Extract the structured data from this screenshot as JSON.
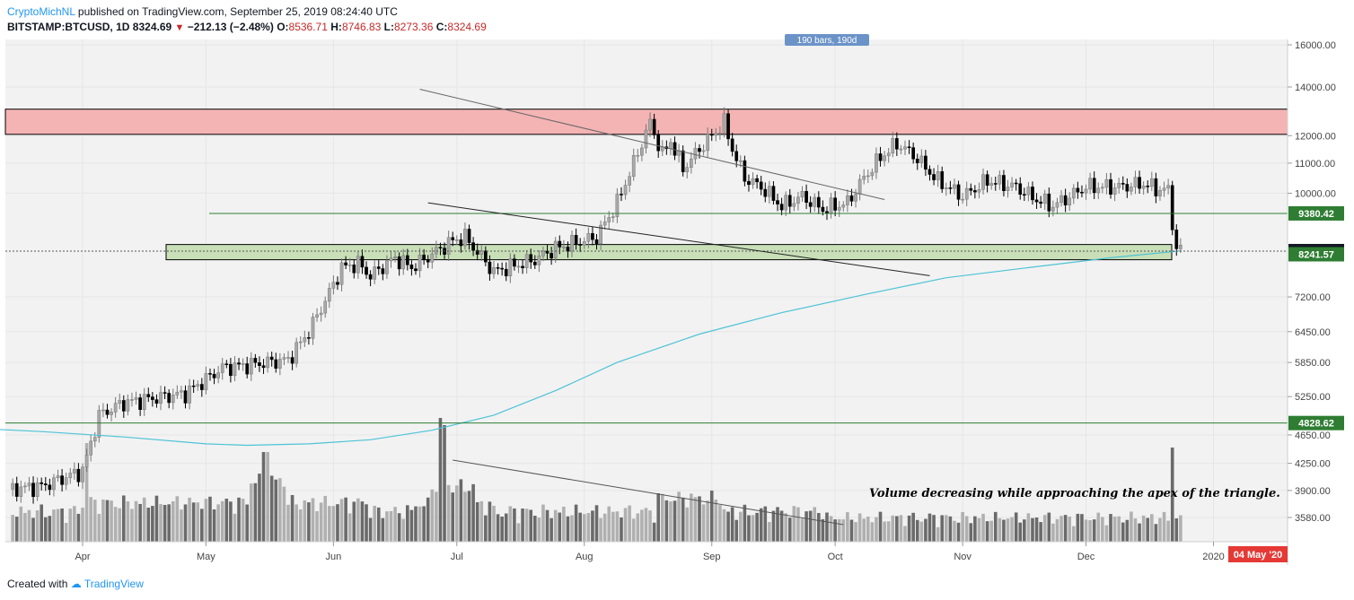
{
  "header": {
    "author": "CryptoMichNL",
    "published": "published on TradingView.com, September 25, 2019 08:24:40 UTC",
    "symbol": "BITSTAMP:BTCUSD, 1D",
    "last": "8324.69",
    "change": "−212.13 (−2.48%)",
    "o_label": "O:",
    "o": "8536.71",
    "h_label": "H:",
    "h": "8746.83",
    "l_label": "L:",
    "l": "8273.36",
    "c_label": "C:",
    "c": "8324.69"
  },
  "footer": {
    "created": "Created with",
    "brand": "TradingView"
  },
  "colors": {
    "resistance_zone": "#f4b4b4",
    "support_zone": "#c8dfb8",
    "green_line": "#2e7d32",
    "ma_line": "#4dc3d6",
    "bull": "#a8a8a8",
    "bear": "#000000",
    "bg": "#f2f2f2",
    "date_tag": "#e53935"
  },
  "chart_data": {
    "type": "candlestick",
    "y_scale": "log",
    "ylim": [
      3300,
      16000
    ],
    "y_ticks": [
      "16000.00",
      "14000.00",
      "12000.00",
      "11000.00",
      "10000.00",
      "7200.00",
      "6450.00",
      "5850.00",
      "5250.00",
      "4650.00",
      "4250.00",
      "3900.00",
      "3580.00"
    ],
    "x_ticks": [
      "Apr",
      "May",
      "Jun",
      "Jul",
      "Aug",
      "Sep",
      "Oct",
      "Nov",
      "Dec",
      "2020"
    ],
    "x_range": [
      "2019-03-05",
      "2020-01-20"
    ],
    "price_labels": [
      {
        "value": 9380.42,
        "text": "9380.42",
        "color": "#2e7d32"
      },
      {
        "value": 8324.69,
        "text": "8324.69",
        "color": "#131722"
      },
      {
        "value": 8241.57,
        "text": "8241.57",
        "color": "#2e7d32"
      },
      {
        "value": 4828.62,
        "text": "4828.62",
        "color": "#2e7d32"
      }
    ],
    "date_label": "04 May '20",
    "bars_label": "190 bars, 190d",
    "zones": [
      {
        "name": "resistance",
        "y0": 12050,
        "y1": 13050
      },
      {
        "name": "support",
        "y0": 8100,
        "y1": 8500
      }
    ],
    "horizontal_lines": [
      9380.42,
      4828.62
    ],
    "annotation": "Volume decreasing while approaching the apex of the triangle."
  }
}
